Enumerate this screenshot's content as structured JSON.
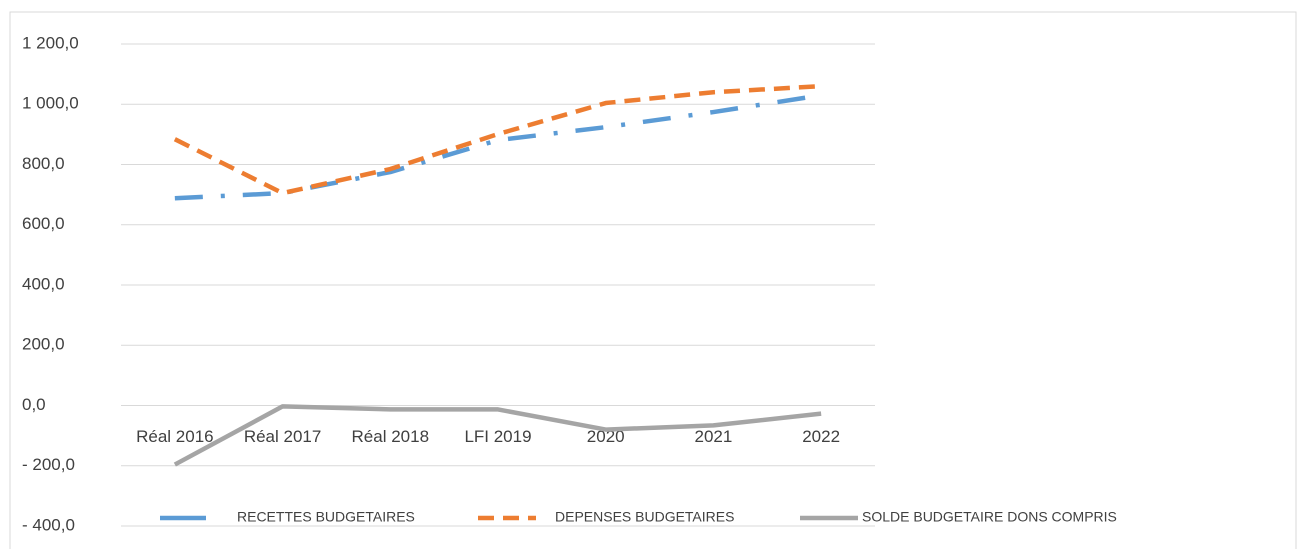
{
  "chart_data": {
    "type": "line",
    "categories": [
      "Réal 2016",
      "Réal 2017",
      "Réal 2018",
      "LFI 2019",
      "2020",
      "2021",
      "2022"
    ],
    "series": [
      {
        "name": "RECETTES BUDGETAIRES",
        "color": "#5b9bd5",
        "values": [
          688,
          705,
          775,
          881,
          924,
          974,
          1030
        ]
      },
      {
        "name": "DEPENSES BUDGETAIRES",
        "color": "#ed7d31",
        "values": [
          884,
          705,
          785,
          901,
          1004,
          1040,
          1060
        ]
      },
      {
        "name": "SOLDE BUDGETAIRE DONS COMPRIS",
        "color": "#a5a5a5",
        "values": [
          -196,
          -3,
          -13,
          -13,
          -80,
          -66,
          -27
        ]
      }
    ],
    "ylim": [
      -400,
      1200
    ],
    "yticks": [
      {
        "value": -400,
        "label": "- 400,0"
      },
      {
        "value": -200,
        "label": "- 200,0"
      },
      {
        "value": 0,
        "label": "0,0"
      },
      {
        "value": 200,
        "label": "200,0"
      },
      {
        "value": 400,
        "label": "400,0"
      },
      {
        "value": 600,
        "label": "600,0"
      },
      {
        "value": 800,
        "label": "800,0"
      },
      {
        "value": 1000,
        "label": "1 000,0"
      },
      {
        "value": 1200,
        "label": "1 200,0"
      }
    ],
    "grid": true,
    "legend": "bottom"
  }
}
